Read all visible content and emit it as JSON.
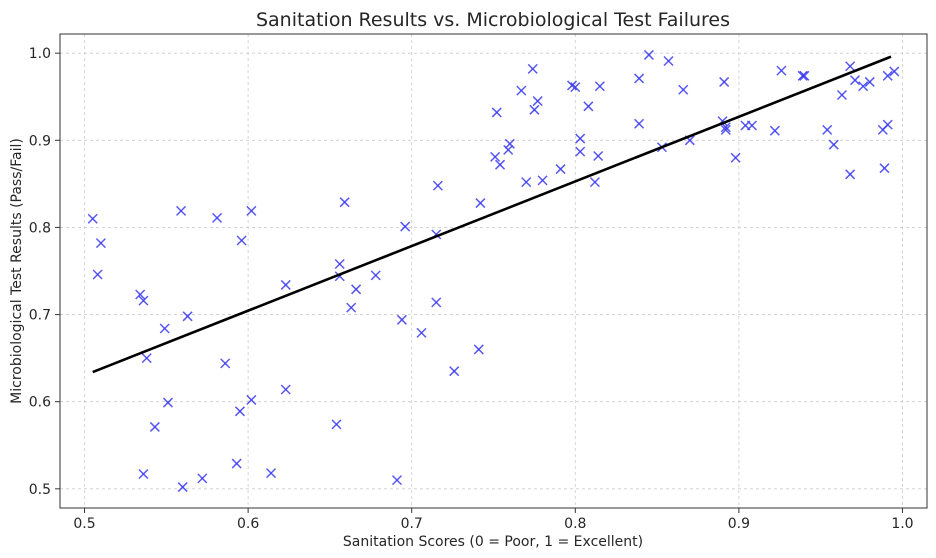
{
  "chart_data": {
    "type": "scatter",
    "title": "Sanitation Results vs. Microbiological Test Failures",
    "xlabel": "Sanitation Scores (0 = Poor, 1 = Excellent)",
    "ylabel": "Microbiological Test Results (Pass/Fail)",
    "xlim": [
      0.485,
      1.015
    ],
    "ylim": [
      0.478,
      1.022
    ],
    "x_ticks": [
      0.5,
      0.6,
      0.7,
      0.8,
      0.9,
      1.0
    ],
    "x_tick_labels": [
      "0.5",
      "0.6",
      "0.7",
      "0.8",
      "0.9",
      "1.0"
    ],
    "y_ticks": [
      0.5,
      0.6,
      0.7,
      0.8,
      0.9,
      1.0
    ],
    "y_tick_labels": [
      "0.5",
      "0.6",
      "0.7",
      "0.8",
      "0.9",
      "1.0"
    ],
    "grid": true,
    "marker": "x",
    "marker_color": "#3a3af0",
    "trend_color": "#000000",
    "series": [
      {
        "points": [
          [
            0.505,
            0.81
          ],
          [
            0.51,
            0.782
          ],
          [
            0.508,
            0.746
          ],
          [
            0.534,
            0.723
          ],
          [
            0.536,
            0.716
          ],
          [
            0.538,
            0.65
          ],
          [
            0.536,
            0.517
          ],
          [
            0.543,
            0.571
          ],
          [
            0.549,
            0.684
          ],
          [
            0.551,
            0.599
          ],
          [
            0.559,
            0.819
          ],
          [
            0.56,
            0.502
          ],
          [
            0.563,
            0.698
          ],
          [
            0.572,
            0.512
          ],
          [
            0.581,
            0.811
          ],
          [
            0.586,
            0.644
          ],
          [
            0.593,
            0.529
          ],
          [
            0.595,
            0.589
          ],
          [
            0.596,
            0.785
          ],
          [
            0.602,
            0.819
          ],
          [
            0.602,
            0.602
          ],
          [
            0.614,
            0.518
          ],
          [
            0.623,
            0.734
          ],
          [
            0.623,
            0.614
          ],
          [
            0.654,
            0.574
          ],
          [
            0.656,
            0.744
          ],
          [
            0.656,
            0.758
          ],
          [
            0.659,
            0.829
          ],
          [
            0.663,
            0.708
          ],
          [
            0.666,
            0.729
          ],
          [
            0.678,
            0.745
          ],
          [
            0.691,
            0.51
          ],
          [
            0.694,
            0.694
          ],
          [
            0.696,
            0.801
          ],
          [
            0.706,
            0.679
          ],
          [
            0.715,
            0.714
          ],
          [
            0.715,
            0.792
          ],
          [
            0.716,
            0.848
          ],
          [
            0.726,
            0.635
          ],
          [
            0.741,
            0.66
          ],
          [
            0.742,
            0.828
          ],
          [
            0.751,
            0.881
          ],
          [
            0.752,
            0.932
          ],
          [
            0.754,
            0.872
          ],
          [
            0.759,
            0.889
          ],
          [
            0.76,
            0.896
          ],
          [
            0.767,
            0.957
          ],
          [
            0.77,
            0.852
          ],
          [
            0.774,
            0.982
          ],
          [
            0.775,
            0.935
          ],
          [
            0.777,
            0.945
          ],
          [
            0.78,
            0.854
          ],
          [
            0.791,
            0.867
          ],
          [
            0.798,
            0.963
          ],
          [
            0.8,
            0.961
          ],
          [
            0.803,
            0.902
          ],
          [
            0.803,
            0.887
          ],
          [
            0.808,
            0.939
          ],
          [
            0.812,
            0.852
          ],
          [
            0.814,
            0.882
          ],
          [
            0.815,
            0.962
          ],
          [
            0.839,
            0.919
          ],
          [
            0.839,
            0.971
          ],
          [
            0.845,
            0.998
          ],
          [
            0.853,
            0.892
          ],
          [
            0.857,
            0.991
          ],
          [
            0.866,
            0.958
          ],
          [
            0.87,
            0.9
          ],
          [
            0.891,
            0.967
          ],
          [
            0.89,
            0.922
          ],
          [
            0.892,
            0.912
          ],
          [
            0.892,
            0.915
          ],
          [
            0.898,
            0.88
          ],
          [
            0.904,
            0.917
          ],
          [
            0.908,
            0.917
          ],
          [
            0.922,
            0.911
          ],
          [
            0.926,
            0.98
          ],
          [
            0.939,
            0.974
          ],
          [
            0.94,
            0.974
          ],
          [
            0.954,
            0.912
          ],
          [
            0.958,
            0.895
          ],
          [
            0.963,
            0.952
          ],
          [
            0.968,
            0.985
          ],
          [
            0.968,
            0.861
          ],
          [
            0.971,
            0.969
          ],
          [
            0.976,
            0.962
          ],
          [
            0.98,
            0.967
          ],
          [
            0.988,
            0.912
          ],
          [
            0.989,
            0.868
          ],
          [
            0.991,
            0.974
          ],
          [
            0.991,
            0.918
          ],
          [
            0.995,
            0.979
          ]
        ]
      }
    ],
    "trendline": [
      [
        0.505,
        0.634
      ],
      [
        0.993,
        0.996
      ]
    ]
  }
}
